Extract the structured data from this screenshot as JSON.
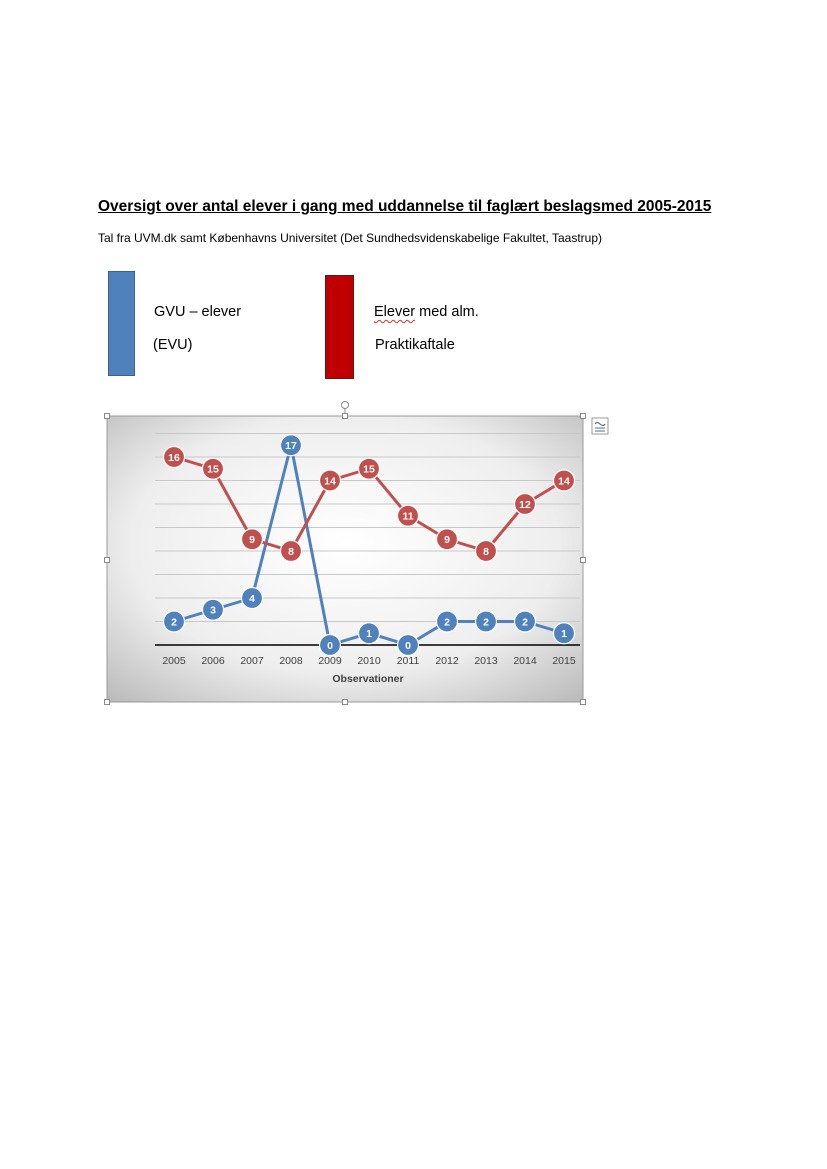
{
  "document": {
    "title": "Oversigt over antal elever i gang med uddannelse til faglært beslagsmed 2005-2015",
    "subtitle": "Tal fra UVM.dk samt Københavns Universitet (Det Sundhedsvidenskabelige Fakultet, Taastrup)"
  },
  "legend": {
    "blue_line1": "GVU – elever",
    "blue_line2": "(EVU)",
    "red_line1_word1": "Elever",
    "red_line1_rest": " med alm.",
    "red_line2": "Praktikaftale",
    "blue_color": "#4f81bd",
    "red_color": "#c00000"
  },
  "chart_data": {
    "type": "line",
    "title": "",
    "xlabel": "Observationer",
    "ylabel": "",
    "x": [
      "2005",
      "2006",
      "2007",
      "2008",
      "2009",
      "2010",
      "2011",
      "2012",
      "2013",
      "2014",
      "2015"
    ],
    "series": [
      {
        "color": "#4f81bd",
        "values": [
          2,
          3,
          4,
          17,
          0,
          1,
          0,
          2,
          2,
          2,
          1
        ]
      },
      {
        "color": "#c0504d",
        "values": [
          16,
          15,
          9,
          8,
          14,
          15,
          11,
          9,
          8,
          12,
          14
        ]
      }
    ],
    "ylim": [
      0,
      18
    ],
    "grid": true,
    "legend": "none"
  },
  "ui": {
    "layout_options_icon": "layout-options-icon",
    "rotate_handle_icon": "rotate-handle-icon"
  }
}
